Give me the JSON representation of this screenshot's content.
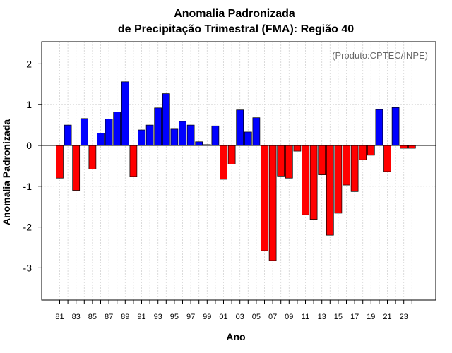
{
  "chart_data": {
    "type": "bar",
    "title_line1": "Anomalia Padronizada",
    "title_line2": "de Precipitação Trimestral (FMA): Região 40",
    "xlabel": "Ano",
    "ylabel": "Anomalia Padronizada",
    "credit": "(Produto:CPTEC/INPE)",
    "ylim": [
      -3.8,
      2.55
    ],
    "yticks": [
      -3,
      -2,
      -1,
      0,
      1,
      2
    ],
    "ytick_labels": [
      "-3",
      "-2",
      "-1",
      "0",
      "1",
      "2"
    ],
    "xtick_labels": [
      "81",
      "83",
      "85",
      "87",
      "89",
      "91",
      "93",
      "95",
      "97",
      "99",
      "01",
      "03",
      "05",
      "07",
      "09",
      "11",
      "13",
      "15",
      "17",
      "19",
      "21",
      "23"
    ],
    "categories": [
      "1981",
      "1982",
      "1983",
      "1984",
      "1985",
      "1986",
      "1987",
      "1988",
      "1989",
      "1990",
      "1991",
      "1992",
      "1993",
      "1994",
      "1995",
      "1996",
      "1997",
      "1998",
      "1999",
      "2000",
      "2001",
      "2002",
      "2003",
      "2004",
      "2005",
      "2006",
      "2007",
      "2008",
      "2009",
      "2010",
      "2011",
      "2012",
      "2013",
      "2014",
      "2015",
      "2016",
      "2017",
      "2018",
      "2019",
      "2020",
      "2021",
      "2022",
      "2023",
      "2024"
    ],
    "values": [
      -0.8,
      0.5,
      -1.1,
      0.66,
      -0.58,
      0.3,
      0.65,
      0.82,
      1.56,
      -0.76,
      0.38,
      0.5,
      0.92,
      1.27,
      0.4,
      0.59,
      0.5,
      0.09,
      0.02,
      0.48,
      -0.83,
      -0.46,
      0.87,
      0.33,
      0.68,
      -2.58,
      -2.82,
      -0.75,
      -0.8,
      -0.14,
      -1.7,
      -1.81,
      -0.72,
      -2.2,
      -1.66,
      -0.97,
      -1.13,
      -0.35,
      -0.24,
      0.88,
      -0.64,
      0.93,
      -0.07,
      -0.07
    ],
    "colors": {
      "positive": "#0000ff",
      "negative": "#ff0000",
      "outline": "#000000",
      "grid": "#d3d3d3"
    },
    "grid": true
  }
}
